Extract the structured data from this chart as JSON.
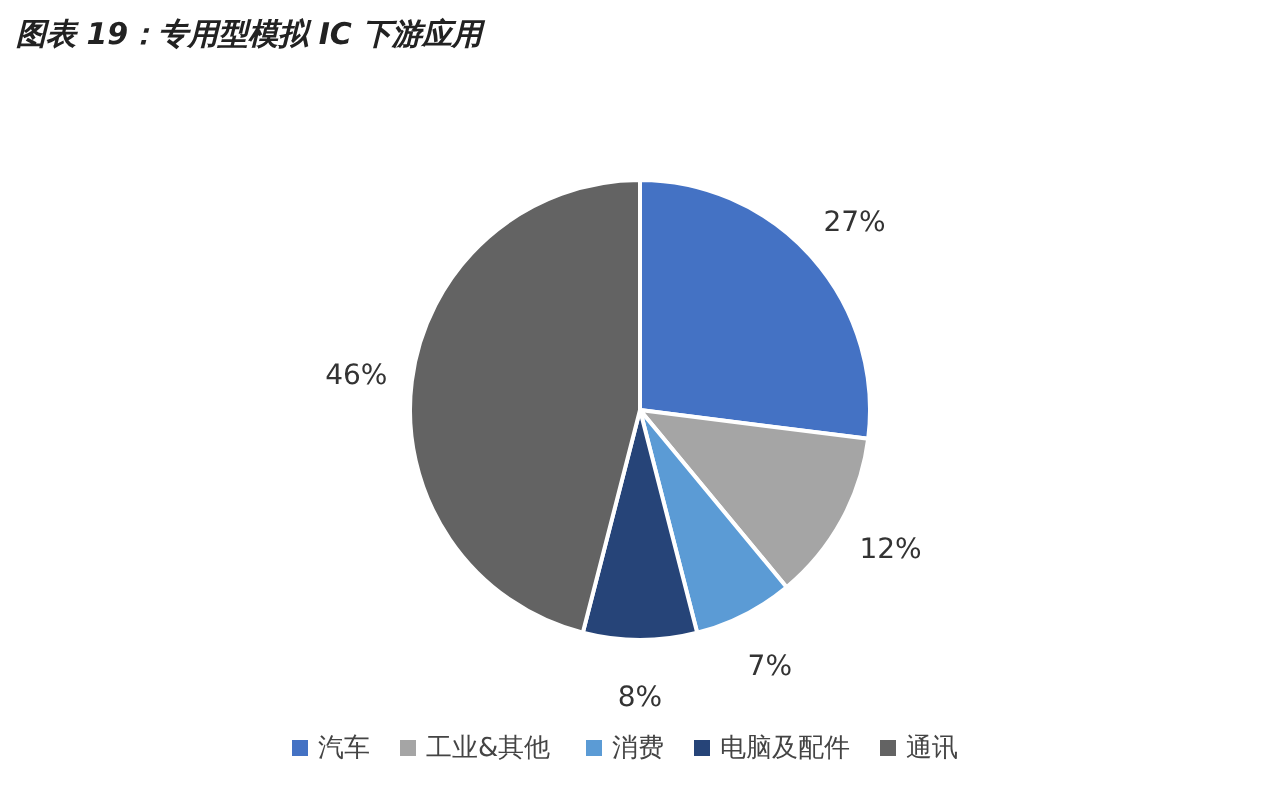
{
  "chart_data": {
    "type": "pie",
    "title": "图表 19：专用型模拟 IC 下游应用",
    "categories": [
      "汽车",
      "工业&其他",
      "消费",
      "电脑及配件",
      "通讯"
    ],
    "values": [
      27,
      12,
      7,
      8,
      46
    ],
    "colors": [
      "#4472c4",
      "#a5a5a5",
      "#5b9bd5",
      "#264478",
      "#636363"
    ],
    "value_labels": [
      "27%",
      "12%",
      "7%",
      "8%",
      "46%"
    ],
    "legend": "bottom"
  }
}
